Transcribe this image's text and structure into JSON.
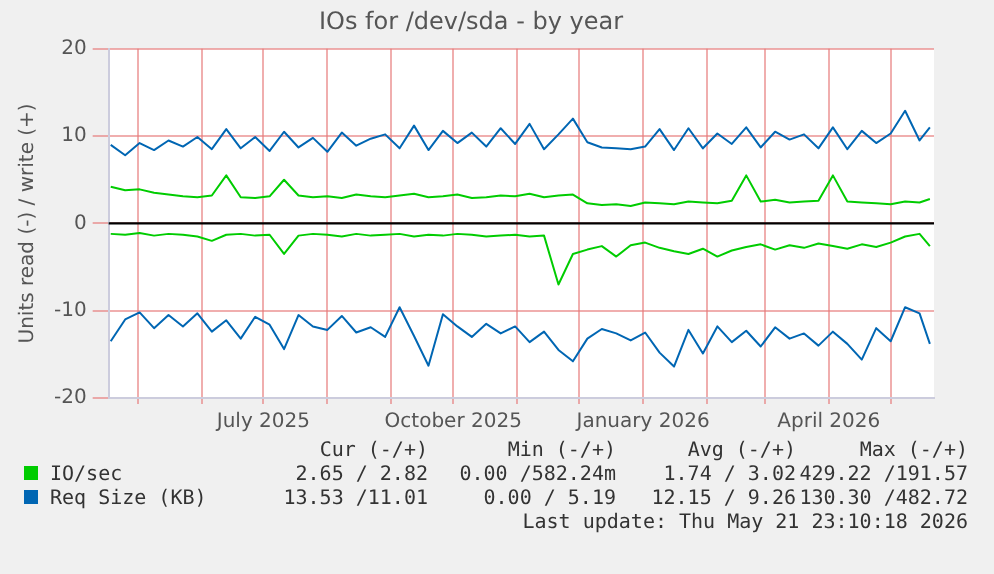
{
  "chart_data": {
    "type": "line",
    "title": "IOs for /dev/sda - by year",
    "ylabel": "Units read (-) / write (+)",
    "x": [
      "2025-04-18",
      "2025-04-25",
      "2025-05-02",
      "2025-05-09",
      "2025-05-16",
      "2025-05-23",
      "2025-05-30",
      "2025-06-06",
      "2025-06-13",
      "2025-06-20",
      "2025-06-27",
      "2025-07-04",
      "2025-07-11",
      "2025-07-18",
      "2025-07-25",
      "2025-08-01",
      "2025-08-08",
      "2025-08-15",
      "2025-08-22",
      "2025-08-29",
      "2025-09-05",
      "2025-09-12",
      "2025-09-19",
      "2025-09-26",
      "2025-10-03",
      "2025-10-10",
      "2025-10-17",
      "2025-10-24",
      "2025-10-31",
      "2025-11-07",
      "2025-11-14",
      "2025-11-21",
      "2025-11-28",
      "2025-12-05",
      "2025-12-12",
      "2025-12-19",
      "2025-12-26",
      "2026-01-02",
      "2026-01-09",
      "2026-01-16",
      "2026-01-23",
      "2026-01-30",
      "2026-02-06",
      "2026-02-13",
      "2026-02-20",
      "2026-02-27",
      "2026-03-06",
      "2026-03-13",
      "2026-03-20",
      "2026-03-27",
      "2026-04-03",
      "2026-04-10",
      "2026-04-17",
      "2026-04-24",
      "2026-05-01",
      "2026-05-08",
      "2026-05-15",
      "2026-05-20"
    ],
    "series": [
      {
        "name": "IO/sec",
        "color": "#00cc00",
        "values": [
          4.2,
          3.8,
          3.9,
          3.5,
          3.3,
          3.1,
          3.0,
          3.2,
          5.5,
          3.0,
          2.9,
          3.1,
          5.0,
          3.2,
          3.0,
          3.1,
          2.9,
          3.3,
          3.1,
          3.0,
          3.2,
          3.4,
          3.0,
          3.1,
          3.3,
          2.9,
          3.0,
          3.2,
          3.1,
          3.4,
          3.0,
          3.2,
          3.3,
          2.3,
          2.1,
          2.2,
          2.0,
          2.4,
          2.3,
          2.2,
          2.5,
          2.4,
          2.3,
          2.6,
          5.5,
          2.5,
          2.7,
          2.4,
          2.5,
          2.6,
          5.5,
          2.5,
          2.4,
          2.3,
          2.2,
          2.5,
          2.4,
          2.8
        ]
      },
      {
        "color": "#00cc00",
        "values": [
          -1.2,
          -1.3,
          -1.1,
          -1.4,
          -1.2,
          -1.3,
          -1.5,
          -2.0,
          -1.3,
          -1.2,
          -1.4,
          -1.3,
          -3.5,
          -1.4,
          -1.2,
          -1.3,
          -1.5,
          -1.2,
          -1.4,
          -1.3,
          -1.2,
          -1.5,
          -1.3,
          -1.4,
          -1.2,
          -1.3,
          -1.5,
          -1.4,
          -1.3,
          -1.5,
          -1.4,
          -7.0,
          -3.5,
          -3.0,
          -2.6,
          -3.8,
          -2.5,
          -2.2,
          -2.8,
          -3.2,
          -3.5,
          -2.9,
          -3.8,
          -3.1,
          -2.7,
          -2.4,
          -3.0,
          -2.5,
          -2.8,
          -2.3,
          -2.6,
          -2.9,
          -2.4,
          -2.7,
          -2.2,
          -1.5,
          -1.2,
          -2.6
        ]
      },
      {
        "name": "Req Size (KB)",
        "color": "#0066b3",
        "values": [
          9.0,
          7.8,
          9.2,
          8.4,
          9.5,
          8.8,
          9.9,
          8.5,
          10.8,
          8.6,
          9.9,
          8.3,
          10.5,
          8.7,
          9.8,
          8.2,
          10.4,
          8.9,
          9.7,
          10.2,
          8.6,
          11.2,
          8.4,
          10.6,
          9.2,
          10.4,
          8.8,
          10.9,
          9.1,
          11.4,
          8.5,
          10.2,
          12.0,
          9.3,
          8.7,
          8.6,
          8.5,
          8.8,
          10.8,
          8.4,
          10.9,
          8.6,
          10.3,
          9.1,
          11.0,
          8.7,
          10.5,
          9.6,
          10.2,
          8.6,
          11.0,
          8.5,
          10.6,
          9.2,
          10.3,
          12.9,
          9.5,
          11.0
        ]
      },
      {
        "color": "#0066b3",
        "values": [
          -13.5,
          -11.0,
          -10.2,
          -12.0,
          -10.5,
          -11.8,
          -10.3,
          -12.4,
          -11.1,
          -13.2,
          -10.7,
          -11.6,
          -14.4,
          -10.5,
          -11.8,
          -12.2,
          -10.6,
          -12.5,
          -11.9,
          -13.0,
          -9.6,
          -12.9,
          -16.3,
          -10.4,
          -11.8,
          -13.0,
          -11.5,
          -12.6,
          -11.8,
          -13.6,
          -12.4,
          -14.5,
          -15.8,
          -13.2,
          -12.1,
          -12.6,
          -13.4,
          -12.5,
          -14.8,
          -16.4,
          -12.2,
          -14.9,
          -11.8,
          -13.6,
          -12.3,
          -14.1,
          -11.9,
          -13.2,
          -12.6,
          -14.0,
          -12.4,
          -13.8,
          -15.6,
          -12.0,
          -13.5,
          -9.6,
          -10.3,
          -13.8
        ]
      }
    ],
    "xlim": [
      "2025-04-17",
      "2026-05-22"
    ],
    "xticks": [
      {
        "value": "2025-05-01",
        "label": null
      },
      {
        "value": "2025-06-01",
        "label": null
      },
      {
        "value": "2025-07-01",
        "label": "July 2025"
      },
      {
        "value": "2025-08-01",
        "label": null
      },
      {
        "value": "2025-09-01",
        "label": null
      },
      {
        "value": "2025-10-01",
        "label": "October 2025"
      },
      {
        "value": "2025-11-01",
        "label": null
      },
      {
        "value": "2025-12-01",
        "label": null
      },
      {
        "value": "2026-01-01",
        "label": "January 2026"
      },
      {
        "value": "2026-02-01",
        "label": null
      },
      {
        "value": "2026-03-01",
        "label": null
      },
      {
        "value": "2026-04-01",
        "label": "April 2026"
      },
      {
        "value": "2026-05-01",
        "label": null
      }
    ],
    "ylim": [
      -20,
      20
    ],
    "yticks": [
      -20,
      -10,
      0,
      10,
      20
    ],
    "ref_lines": [
      {
        "axis": "y",
        "value": 0,
        "color": "#000000"
      }
    ],
    "grid": true,
    "legend": "bottom",
    "annotations": [
      "Cur (-/+)",
      "Min (-/+)",
      "Avg (-/+)",
      "Max (-/+)",
      "2.65 / 2.82",
      "0.00 /582.24m",
      "1.74 / 3.02",
      "429.22 /191.57",
      "13.53 /11.01",
      "0.00 / 5.19",
      "12.15 / 9.26",
      "130.30 /482.72",
      "Last update: Thu May 21 23:10:18 2026"
    ]
  }
}
